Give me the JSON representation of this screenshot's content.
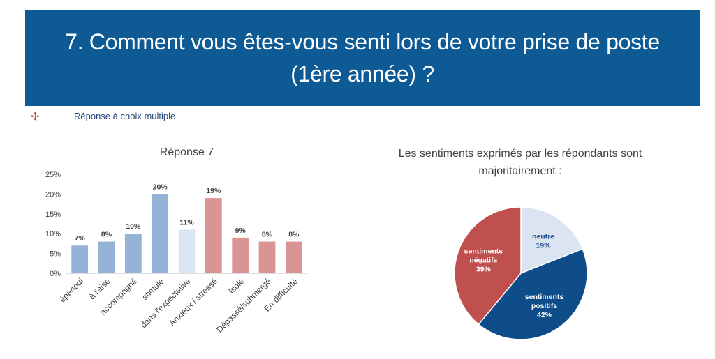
{
  "header": {
    "title": "7. Comment vous êtes-vous senti lors de votre prise de poste (1ère année) ?"
  },
  "subheader": {
    "bullet": "✢",
    "label": "Réponse à choix multiple"
  },
  "chart_data": [
    {
      "type": "bar",
      "title": "Réponse 7",
      "categories": [
        "épanoui",
        "à l'aise",
        "accompagné",
        "stimulé",
        "dans l'expectative",
        "Anxieux / stressé",
        "Isolé",
        "Dépassé/submergé",
        "En difficulté"
      ],
      "values": [
        7,
        8,
        10,
        20,
        11,
        19,
        9,
        8,
        8
      ],
      "value_labels": [
        "7%",
        "8%",
        "10%",
        "20%",
        "11%",
        "19%",
        "9%",
        "8%",
        "8%"
      ],
      "colors": [
        "#95b3d7",
        "#95b3d7",
        "#95b3d7",
        "#95b3d7",
        "#dbe5f1",
        "#d99594",
        "#d99594",
        "#d99594",
        "#d99594"
      ],
      "yticks": [
        "0%",
        "5%",
        "10%",
        "15%",
        "20%",
        "25%"
      ],
      "ylim": [
        0,
        25
      ],
      "grid": false,
      "xlabel": "",
      "ylabel": ""
    },
    {
      "type": "pie",
      "title": "Les sentiments exprimés par les répondants sont majoritairement :",
      "slices": [
        {
          "label": "neutre",
          "value": 19,
          "value_label": "19%",
          "color": "#dbe5f1",
          "text_color": "#1f4e8c"
        },
        {
          "label": "sentiments positifs",
          "value": 42,
          "value_label": "42%",
          "color": "#0e4d8a",
          "text_color": "#ffffff"
        },
        {
          "label": "sentiments négatifs",
          "value": 39,
          "value_label": "39%",
          "color": "#c0504d",
          "text_color": "#ffffff"
        }
      ]
    }
  ]
}
